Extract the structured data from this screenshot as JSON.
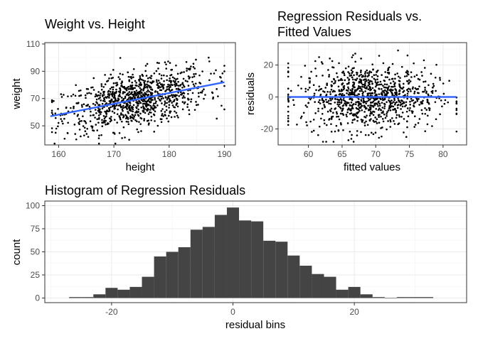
{
  "chart_data": [
    {
      "type": "scatter",
      "title": "Weight vs. Height",
      "xlabel": "height",
      "ylabel": "weight",
      "xlim": [
        157.5,
        192
      ],
      "ylim": [
        36,
        111
      ],
      "xticks": [
        160,
        170,
        180,
        190
      ],
      "yticks": [
        50,
        70,
        90,
        110
      ],
      "grid": true,
      "point_color": "#000000",
      "point_count": 1000,
      "trend_line": {
        "color": "#3366ff",
        "x": [
          158.5,
          190
        ],
        "y": [
          57,
          82
        ]
      }
    },
    {
      "type": "scatter",
      "title": "Regression Residuals vs.\nFitted Values",
      "title_lines": [
        "Regression Residuals vs.",
        "Fitted Values"
      ],
      "xlabel": "fitted values",
      "ylabel": "residuals",
      "xlim": [
        55.5,
        83.5
      ],
      "ylim": [
        -30,
        34
      ],
      "xticks": [
        60,
        65,
        70,
        75,
        80
      ],
      "yticks": [
        -20,
        0,
        20
      ],
      "grid": true,
      "point_color": "#000000",
      "point_count": 1000,
      "trend_line": {
        "color": "#3366ff",
        "x": [
          57,
          82
        ],
        "y": [
          0,
          0
        ]
      }
    },
    {
      "type": "bar",
      "title": "Histogram of Regression Residuals",
      "xlabel": "residual bins",
      "ylabel": "count",
      "xlim": [
        -31,
        38.5
      ],
      "ylim": [
        -5,
        105
      ],
      "xticks": [
        -20,
        0,
        20
      ],
      "yticks": [
        0,
        25,
        50,
        75,
        100
      ],
      "grid": true,
      "bar_color": "#444444",
      "bin_width": 2,
      "bin_centers": [
        -26,
        -24,
        -22,
        -20,
        -18,
        -16,
        -14,
        -12,
        -10,
        -8,
        -6,
        -4,
        -2,
        0,
        2,
        4,
        6,
        8,
        10,
        12,
        14,
        16,
        18,
        20,
        22,
        24,
        26,
        28,
        30,
        32
      ],
      "values": [
        1,
        1,
        4,
        11,
        9,
        12,
        23,
        45,
        50,
        55,
        74,
        77,
        90,
        98,
        84,
        83,
        62,
        61,
        46,
        35,
        26,
        23,
        9,
        12,
        4,
        1,
        0,
        1,
        1,
        1
      ]
    }
  ]
}
